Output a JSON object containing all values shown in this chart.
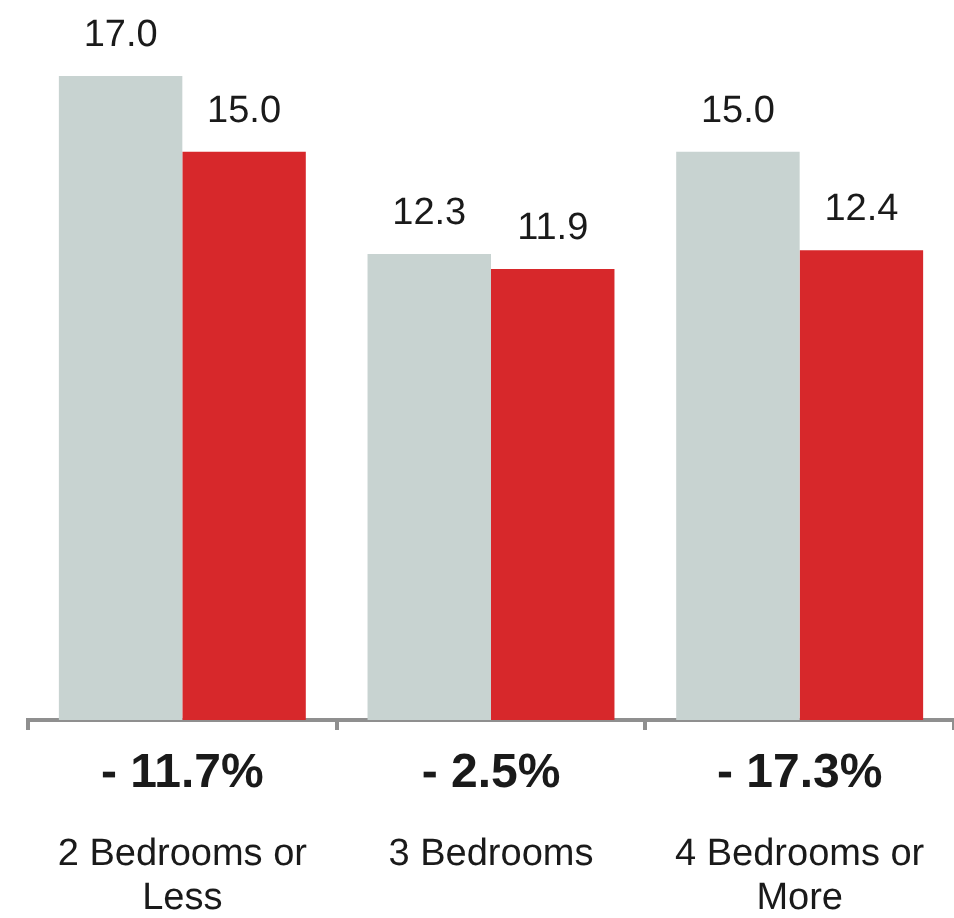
{
  "chart_data": {
    "type": "bar",
    "categories": [
      "2 Bedrooms or Less",
      "3 Bedrooms",
      "4 Bedrooms or More"
    ],
    "series": [
      {
        "color": "#c8d3d1",
        "values": [
          17.0,
          12.3,
          15.0
        ],
        "value_labels": [
          "17.0",
          "12.3",
          "15.0"
        ]
      },
      {
        "color": "#d7282b",
        "values": [
          15.0,
          11.9,
          12.4
        ],
        "value_labels": [
          "15.0",
          "11.9",
          "12.4"
        ]
      }
    ],
    "annotations": [
      "- 11.7%",
      "- 2.5%",
      "- 17.3%"
    ],
    "legend": false,
    "grid": false
  }
}
